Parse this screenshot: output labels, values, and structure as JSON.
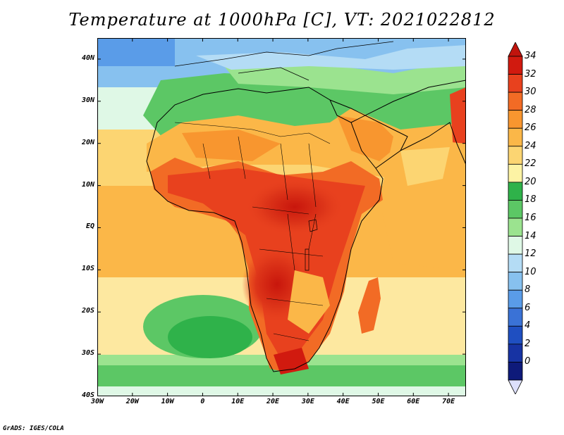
{
  "title": "Temperature at 1000hPa [C], VT: 2021022812",
  "credit": "GrADS: IGES/COLA",
  "map": {
    "lon_range": [
      -30,
      75
    ],
    "lat_range": [
      -40,
      45
    ],
    "lat_ticks": [
      {
        "value": 40,
        "label": "40N"
      },
      {
        "value": 30,
        "label": "30N"
      },
      {
        "value": 20,
        "label": "20N"
      },
      {
        "value": 10,
        "label": "10N"
      },
      {
        "value": 0,
        "label": "EQ"
      },
      {
        "value": -10,
        "label": "10S"
      },
      {
        "value": -20,
        "label": "20S"
      },
      {
        "value": -30,
        "label": "30S"
      },
      {
        "value": -40,
        "label": "40S"
      }
    ],
    "lon_ticks": [
      {
        "value": -30,
        "label": "30W"
      },
      {
        "value": -20,
        "label": "20W"
      },
      {
        "value": -10,
        "label": "10W"
      },
      {
        "value": 0,
        "label": "0"
      },
      {
        "value": 10,
        "label": "10E"
      },
      {
        "value": 20,
        "label": "20E"
      },
      {
        "value": 30,
        "label": "30E"
      },
      {
        "value": 40,
        "label": "40E"
      },
      {
        "value": 50,
        "label": "50E"
      },
      {
        "value": 60,
        "label": "60E"
      },
      {
        "value": 70,
        "label": "70E"
      }
    ]
  },
  "colorbar": {
    "levels": [
      {
        "label": "34",
        "color": "#d11a0f"
      },
      {
        "label": "32",
        "color": "#e8411e"
      },
      {
        "label": "30",
        "color": "#f26b25"
      },
      {
        "label": "28",
        "color": "#f8962f"
      },
      {
        "label": "26",
        "color": "#fbb748"
      },
      {
        "label": "24",
        "color": "#fcd572"
      },
      {
        "label": "22",
        "color": "#fdf3a4"
      },
      {
        "label": "20",
        "color": "#2fb24a"
      },
      {
        "label": "18",
        "color": "#5cc765"
      },
      {
        "label": "16",
        "color": "#9be38f"
      },
      {
        "label": "14",
        "color": "#dff8e6"
      },
      {
        "label": "12",
        "color": "#b4dcf5"
      },
      {
        "label": "10",
        "color": "#87c1ef"
      },
      {
        "label": "8",
        "color": "#5a9ce8"
      },
      {
        "label": "6",
        "color": "#3a72d6"
      },
      {
        "label": "4",
        "color": "#1f4fc1"
      },
      {
        "label": "2",
        "color": "#1733a3"
      },
      {
        "label": "0",
        "color": "#0e1a7a"
      }
    ],
    "top_arrow_color": "#c0140d",
    "bottom_arrow_color": "#dde0fb"
  }
}
